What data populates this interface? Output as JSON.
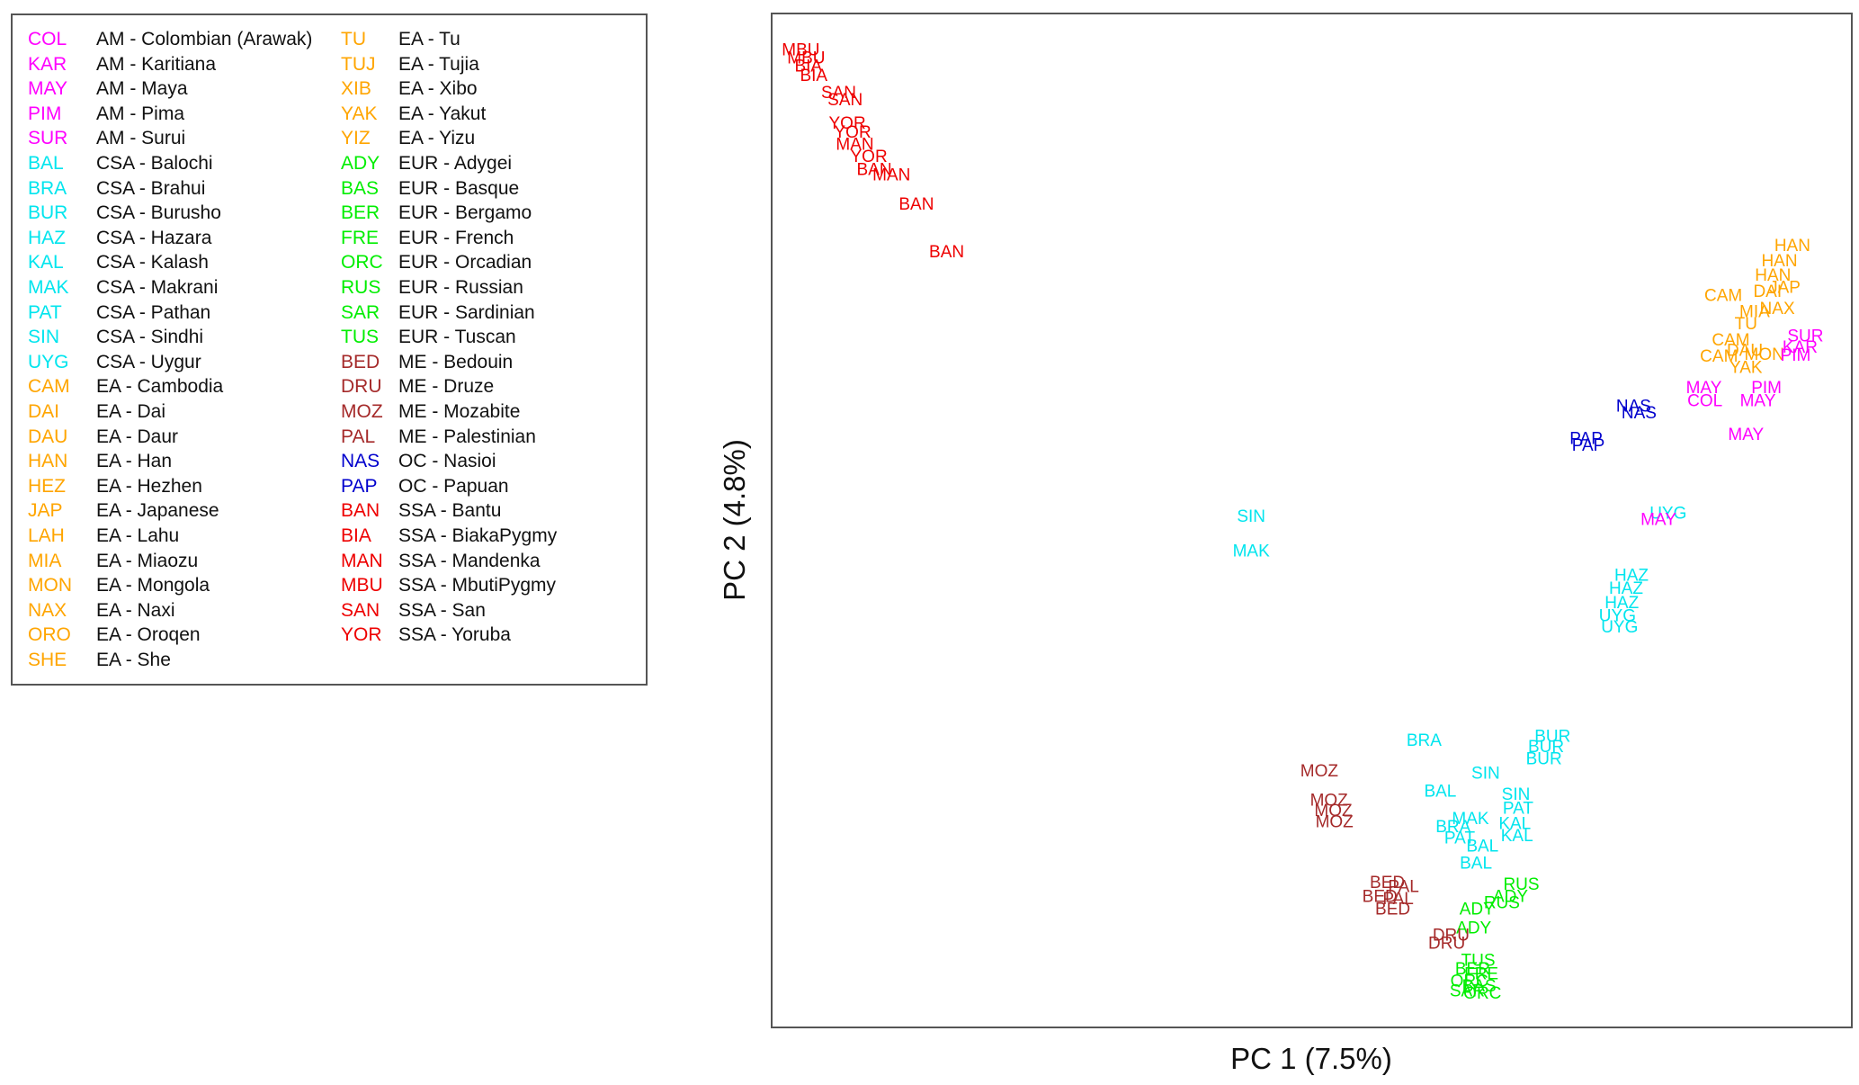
{
  "chart_data": {
    "type": "scatter",
    "title": "",
    "xlabel": "PC 1 (7.5%)",
    "ylabel": "PC 2 (4.8%)",
    "xlim": [
      0,
      100
    ],
    "ylim": [
      0,
      100
    ],
    "grid": false,
    "legend_position": "top-left",
    "group_colors": {
      "AM": "#ff00ff",
      "CSA": "#00e5ee",
      "EA": "#ffa500",
      "EUR": "#00ee00",
      "ME": "#a52a2a",
      "OC": "#0000cd",
      "SSA": "#ee0000"
    },
    "legend": [
      {
        "code": "COL",
        "label": "AM - Colombian (Arawak)",
        "group": "AM"
      },
      {
        "code": "KAR",
        "label": "AM - Karitiana",
        "group": "AM"
      },
      {
        "code": "MAY",
        "label": "AM - Maya",
        "group": "AM"
      },
      {
        "code": "PIM",
        "label": "AM - Pima",
        "group": "AM"
      },
      {
        "code": "SUR",
        "label": "AM - Surui",
        "group": "AM"
      },
      {
        "code": "BAL",
        "label": "CSA - Balochi",
        "group": "CSA"
      },
      {
        "code": "BRA",
        "label": "CSA - Brahui",
        "group": "CSA"
      },
      {
        "code": "BUR",
        "label": "CSA - Burusho",
        "group": "CSA"
      },
      {
        "code": "HAZ",
        "label": "CSA - Hazara",
        "group": "CSA"
      },
      {
        "code": "KAL",
        "label": "CSA - Kalash",
        "group": "CSA"
      },
      {
        "code": "MAK",
        "label": "CSA - Makrani",
        "group": "CSA"
      },
      {
        "code": "PAT",
        "label": "CSA - Pathan",
        "group": "CSA"
      },
      {
        "code": "SIN",
        "label": "CSA - Sindhi",
        "group": "CSA"
      },
      {
        "code": "UYG",
        "label": "CSA - Uygur",
        "group": "CSA"
      },
      {
        "code": "CAM",
        "label": "EA - Cambodia",
        "group": "EA"
      },
      {
        "code": "DAI",
        "label": "EA - Dai",
        "group": "EA"
      },
      {
        "code": "DAU",
        "label": "EA - Daur",
        "group": "EA"
      },
      {
        "code": "HAN",
        "label": "EA - Han",
        "group": "EA"
      },
      {
        "code": "HEZ",
        "label": "EA - Hezhen",
        "group": "EA"
      },
      {
        "code": "JAP",
        "label": "EA - Japanese",
        "group": "EA"
      },
      {
        "code": "LAH",
        "label": "EA - Lahu",
        "group": "EA"
      },
      {
        "code": "MIA",
        "label": "EA - Miaozu",
        "group": "EA"
      },
      {
        "code": "MON",
        "label": "EA - Mongola",
        "group": "EA"
      },
      {
        "code": "NAX",
        "label": "EA - Naxi",
        "group": "EA"
      },
      {
        "code": "ORO",
        "label": "EA - Oroqen",
        "group": "EA"
      },
      {
        "code": "SHE",
        "label": "EA - She",
        "group": "EA"
      },
      {
        "code": "TU",
        "label": "EA - Tu",
        "group": "EA"
      },
      {
        "code": "TUJ",
        "label": "EA - Tujia",
        "group": "EA"
      },
      {
        "code": "XIB",
        "label": "EA - Xibo",
        "group": "EA"
      },
      {
        "code": "YAK",
        "label": "EA - Yakut",
        "group": "EA"
      },
      {
        "code": "YIZ",
        "label": "EA - Yizu",
        "group": "EA"
      },
      {
        "code": "ADY",
        "label": "EUR - Adygei",
        "group": "EUR"
      },
      {
        "code": "BAS",
        "label": "EUR - Basque",
        "group": "EUR"
      },
      {
        "code": "BER",
        "label": "EUR - Bergamo",
        "group": "EUR"
      },
      {
        "code": "FRE",
        "label": "EUR - French",
        "group": "EUR"
      },
      {
        "code": "ORC",
        "label": "EUR - Orcadian",
        "group": "EUR"
      },
      {
        "code": "RUS",
        "label": "EUR - Russian",
        "group": "EUR"
      },
      {
        "code": "SAR",
        "label": "EUR - Sardinian",
        "group": "EUR"
      },
      {
        "code": "TUS",
        "label": "EUR - Tuscan",
        "group": "EUR"
      },
      {
        "code": "BED",
        "label": "ME - Bedouin",
        "group": "ME"
      },
      {
        "code": "DRU",
        "label": "ME - Druze",
        "group": "ME"
      },
      {
        "code": "MOZ",
        "label": "ME - Mozabite",
        "group": "ME"
      },
      {
        "code": "PAL",
        "label": "ME - Palestinian",
        "group": "ME"
      },
      {
        "code": "NAS",
        "label": "OC - Nasioi",
        "group": "OC"
      },
      {
        "code": "PAP",
        "label": "OC - Papuan",
        "group": "OC"
      },
      {
        "code": "BAN",
        "label": "SSA - Bantu",
        "group": "SSA"
      },
      {
        "code": "BIA",
        "label": "SSA - BiakaPygmy",
        "group": "SSA"
      },
      {
        "code": "MAN",
        "label": "SSA - Mandenka",
        "group": "SSA"
      },
      {
        "code": "MBU",
        "label": "SSA - MbutiPygmy",
        "group": "SSA"
      },
      {
        "code": "SAN",
        "label": "SSA - San",
        "group": "SSA"
      },
      {
        "code": "YOR",
        "label": "SSA - Yoruba",
        "group": "SSA"
      }
    ],
    "points": [
      {
        "label": "MBU",
        "group": "SSA",
        "x": 2.7,
        "y": 96.3
      },
      {
        "label": "MBU",
        "group": "SSA",
        "x": 3.2,
        "y": 95.5
      },
      {
        "label": "BIA",
        "group": "SSA",
        "x": 3.4,
        "y": 94.7
      },
      {
        "label": "BIA",
        "group": "SSA",
        "x": 3.9,
        "y": 93.8
      },
      {
        "label": "SAN",
        "group": "SSA",
        "x": 6.2,
        "y": 92.1
      },
      {
        "label": "SAN",
        "group": "SSA",
        "x": 6.8,
        "y": 91.4
      },
      {
        "label": "YOR",
        "group": "SSA",
        "x": 7.0,
        "y": 89.1
      },
      {
        "label": "YOR",
        "group": "SSA",
        "x": 7.5,
        "y": 88.2
      },
      {
        "label": "MAN",
        "group": "SSA",
        "x": 7.7,
        "y": 87.0
      },
      {
        "label": "YOR",
        "group": "SSA",
        "x": 9.0,
        "y": 85.8
      },
      {
        "label": "BAN",
        "group": "SSA",
        "x": 9.5,
        "y": 84.5
      },
      {
        "label": "MAN",
        "group": "SSA",
        "x": 11.1,
        "y": 84.0
      },
      {
        "label": "BAN",
        "group": "SSA",
        "x": 13.4,
        "y": 81.1
      },
      {
        "label": "BAN",
        "group": "SSA",
        "x": 16.2,
        "y": 76.4
      },
      {
        "label": "HAN",
        "group": "EA",
        "x": 94.5,
        "y": 77.0
      },
      {
        "label": "HAN",
        "group": "EA",
        "x": 93.3,
        "y": 75.5
      },
      {
        "label": "HAN",
        "group": "EA",
        "x": 92.7,
        "y": 74.1
      },
      {
        "label": "DAI",
        "group": "EA",
        "x": 92.2,
        "y": 72.5
      },
      {
        "label": "JAP",
        "group": "EA",
        "x": 93.8,
        "y": 72.9
      },
      {
        "label": "CAM",
        "group": "EA",
        "x": 88.1,
        "y": 72.1
      },
      {
        "label": "MIA",
        "group": "EA",
        "x": 91.0,
        "y": 70.5
      },
      {
        "label": "NAX",
        "group": "EA",
        "x": 93.1,
        "y": 70.8
      },
      {
        "label": "TU",
        "group": "EA",
        "x": 90.2,
        "y": 69.3
      },
      {
        "label": "CAM",
        "group": "EA",
        "x": 88.8,
        "y": 67.7
      },
      {
        "label": "DAU",
        "group": "EA",
        "x": 90.1,
        "y": 66.7
      },
      {
        "label": "MON",
        "group": "EA",
        "x": 91.9,
        "y": 66.3
      },
      {
        "label": "YAK",
        "group": "EA",
        "x": 90.2,
        "y": 65.0
      },
      {
        "label": "CAM",
        "group": "EA",
        "x": 87.7,
        "y": 66.1
      },
      {
        "label": "SUR",
        "group": "AM",
        "x": 95.7,
        "y": 68.1
      },
      {
        "label": "KAR",
        "group": "AM",
        "x": 95.2,
        "y": 67.0
      },
      {
        "label": "PIM",
        "group": "AM",
        "x": 94.8,
        "y": 66.2
      },
      {
        "label": "MAY",
        "group": "AM",
        "x": 86.3,
        "y": 63.0
      },
      {
        "label": "PIM",
        "group": "AM",
        "x": 92.1,
        "y": 63.0
      },
      {
        "label": "COL",
        "group": "AM",
        "x": 86.4,
        "y": 61.7
      },
      {
        "label": "MAY",
        "group": "AM",
        "x": 91.3,
        "y": 61.7
      },
      {
        "label": "MAY",
        "group": "AM",
        "x": 90.2,
        "y": 58.4
      },
      {
        "label": "NAS",
        "group": "OC",
        "x": 79.8,
        "y": 61.2
      },
      {
        "label": "NAS",
        "group": "OC",
        "x": 80.3,
        "y": 60.5
      },
      {
        "label": "PAP",
        "group": "OC",
        "x": 75.4,
        "y": 58.0
      },
      {
        "label": "PAP",
        "group": "OC",
        "x": 75.6,
        "y": 57.3
      },
      {
        "label": "SIN",
        "group": "CSA",
        "x": 44.4,
        "y": 50.3
      },
      {
        "label": "MAK",
        "group": "CSA",
        "x": 44.4,
        "y": 46.9
      },
      {
        "label": "UYG",
        "group": "CSA",
        "x": 83.0,
        "y": 50.6
      },
      {
        "label": "MAY",
        "group": "AM",
        "x": 82.1,
        "y": 50.0
      },
      {
        "label": "HAZ",
        "group": "CSA",
        "x": 79.6,
        "y": 44.5
      },
      {
        "label": "HAZ",
        "group": "CSA",
        "x": 79.1,
        "y": 43.2
      },
      {
        "label": "HAZ",
        "group": "CSA",
        "x": 78.7,
        "y": 41.8
      },
      {
        "label": "UYG",
        "group": "CSA",
        "x": 78.3,
        "y": 40.5
      },
      {
        "label": "UYG",
        "group": "CSA",
        "x": 78.5,
        "y": 39.4
      },
      {
        "label": "BRA",
        "group": "CSA",
        "x": 60.4,
        "y": 28.2
      },
      {
        "label": "BUR",
        "group": "CSA",
        "x": 72.3,
        "y": 28.6
      },
      {
        "label": "BUR",
        "group": "CSA",
        "x": 71.7,
        "y": 27.6
      },
      {
        "label": "BUR",
        "group": "CSA",
        "x": 71.5,
        "y": 26.4
      },
      {
        "label": "MOZ",
        "group": "ME",
        "x": 50.7,
        "y": 25.2
      },
      {
        "label": "MOZ",
        "group": "ME",
        "x": 51.6,
        "y": 22.3
      },
      {
        "label": "MOZ",
        "group": "ME",
        "x": 52.0,
        "y": 21.3
      },
      {
        "label": "MOZ",
        "group": "ME",
        "x": 52.1,
        "y": 20.2
      },
      {
        "label": "SIN",
        "group": "CSA",
        "x": 66.1,
        "y": 25.0
      },
      {
        "label": "BAL",
        "group": "CSA",
        "x": 61.9,
        "y": 23.2
      },
      {
        "label": "SIN",
        "group": "CSA",
        "x": 68.9,
        "y": 22.9
      },
      {
        "label": "PAT",
        "group": "CSA",
        "x": 69.1,
        "y": 21.5
      },
      {
        "label": "MAK",
        "group": "CSA",
        "x": 64.7,
        "y": 20.5
      },
      {
        "label": "KAL",
        "group": "CSA",
        "x": 68.8,
        "y": 20.0
      },
      {
        "label": "BRA",
        "group": "CSA",
        "x": 63.1,
        "y": 19.7
      },
      {
        "label": "KAL",
        "group": "CSA",
        "x": 69.0,
        "y": 18.8
      },
      {
        "label": "PAT",
        "group": "CSA",
        "x": 63.7,
        "y": 18.6
      },
      {
        "label": "BAL",
        "group": "CSA",
        "x": 65.8,
        "y": 17.8
      },
      {
        "label": "BAL",
        "group": "CSA",
        "x": 65.2,
        "y": 16.1
      },
      {
        "label": "BED",
        "group": "ME",
        "x": 57.0,
        "y": 14.2
      },
      {
        "label": "PAL",
        "group": "ME",
        "x": 58.5,
        "y": 13.8
      },
      {
        "label": "BED",
        "group": "ME",
        "x": 56.3,
        "y": 12.8
      },
      {
        "label": "PAL",
        "group": "ME",
        "x": 58.0,
        "y": 12.6
      },
      {
        "label": "BED",
        "group": "ME",
        "x": 57.5,
        "y": 11.6
      },
      {
        "label": "RUS",
        "group": "EUR",
        "x": 69.4,
        "y": 14.0
      },
      {
        "label": "ADY",
        "group": "EUR",
        "x": 68.4,
        "y": 12.8
      },
      {
        "label": "RUS",
        "group": "EUR",
        "x": 67.6,
        "y": 12.2
      },
      {
        "label": "ADY",
        "group": "EUR",
        "x": 65.3,
        "y": 11.6
      },
      {
        "label": "ADY",
        "group": "EUR",
        "x": 65.0,
        "y": 9.7
      },
      {
        "label": "DRU",
        "group": "ME",
        "x": 62.9,
        "y": 9.0
      },
      {
        "label": "DRU",
        "group": "ME",
        "x": 62.5,
        "y": 8.2
      },
      {
        "label": "TUS",
        "group": "EUR",
        "x": 65.4,
        "y": 6.5
      },
      {
        "label": "BER",
        "group": "EUR",
        "x": 64.9,
        "y": 5.7
      },
      {
        "label": "FRE",
        "group": "EUR",
        "x": 65.7,
        "y": 5.2
      },
      {
        "label": "ORC",
        "group": "EUR",
        "x": 64.6,
        "y": 4.5
      },
      {
        "label": "BAS",
        "group": "EUR",
        "x": 65.5,
        "y": 4.0
      },
      {
        "label": "SAR",
        "group": "EUR",
        "x": 64.4,
        "y": 3.5
      },
      {
        "label": "ORC",
        "group": "EUR",
        "x": 65.8,
        "y": 3.3
      }
    ]
  }
}
